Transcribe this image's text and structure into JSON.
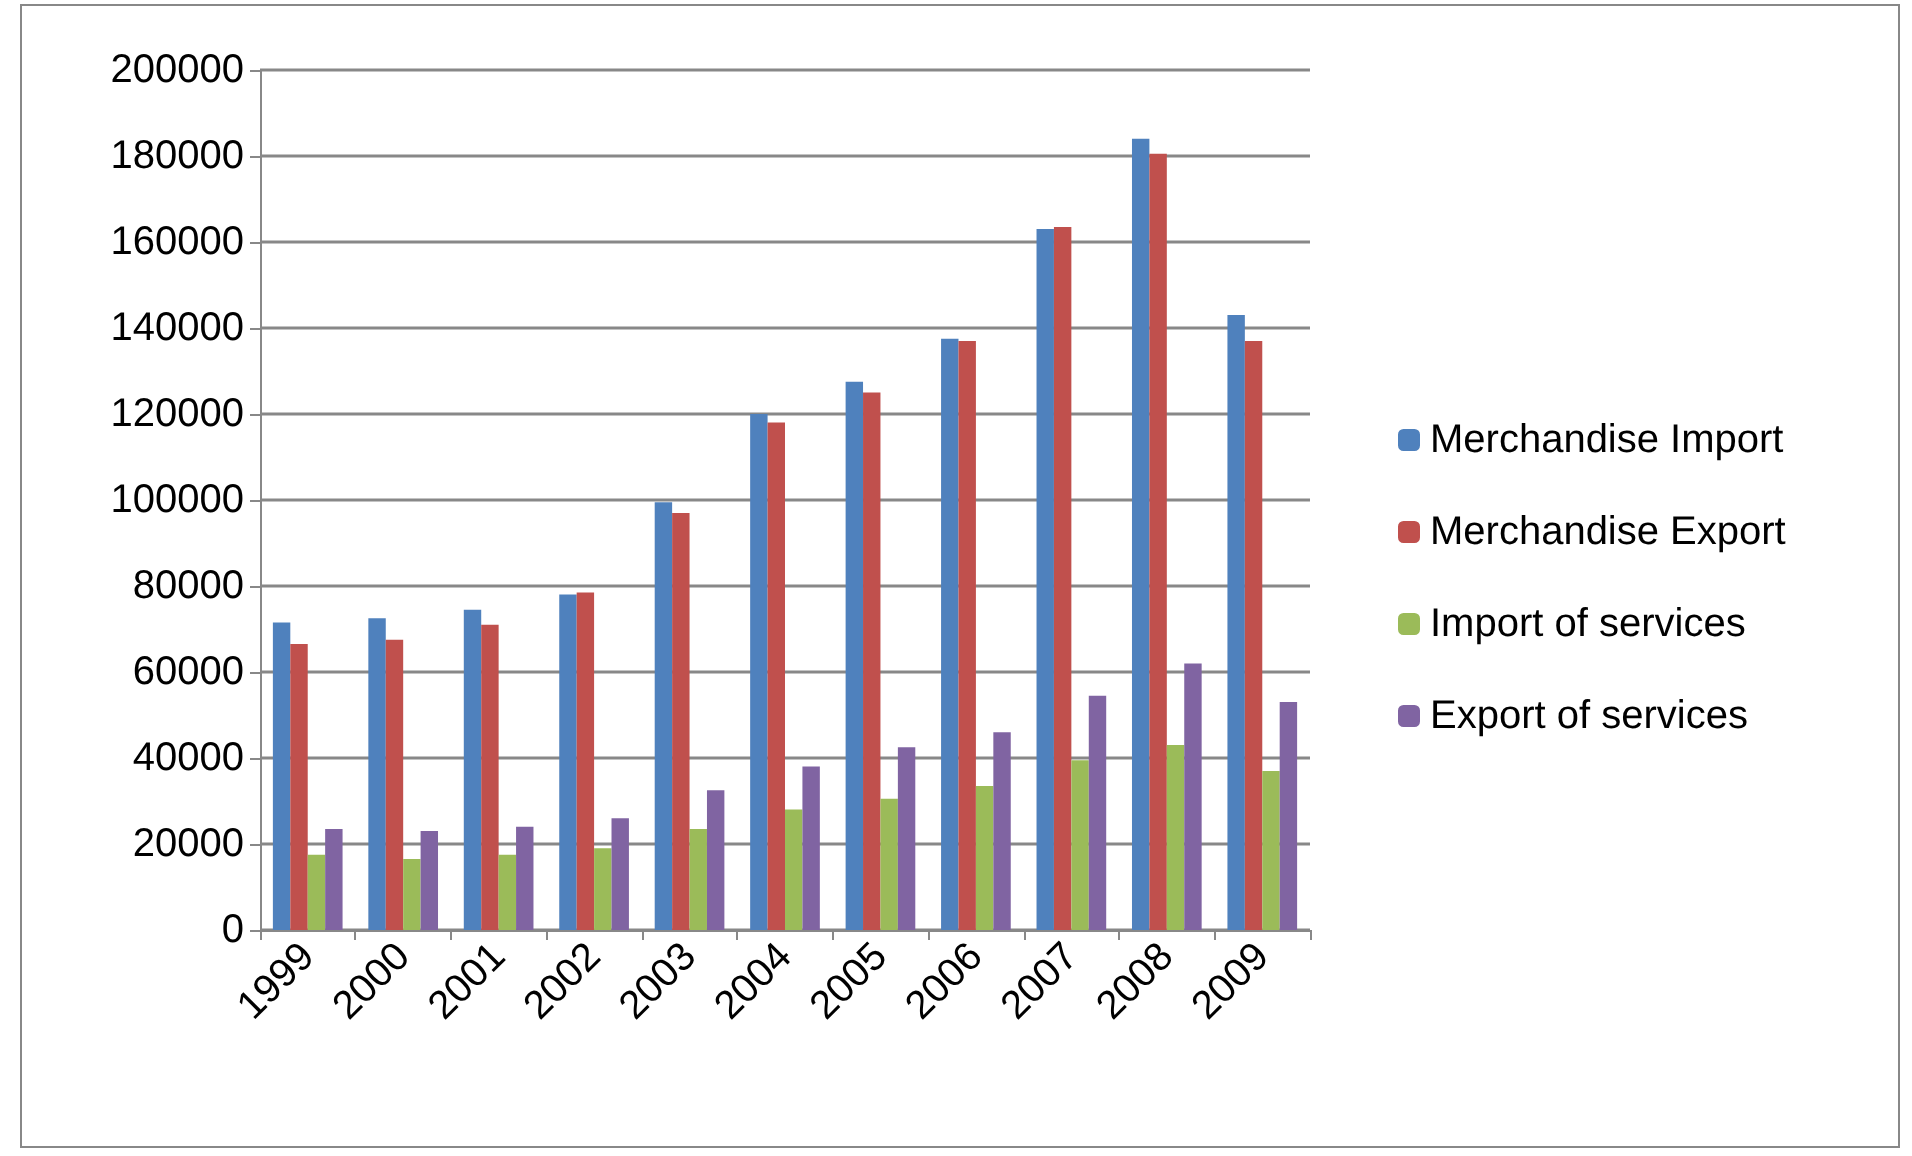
{
  "chart_data": {
    "type": "bar",
    "categories": [
      "1999",
      "2000",
      "2001",
      "2002",
      "2003",
      "2004",
      "2005",
      "2006",
      "2007",
      "2008",
      "2009"
    ],
    "series": [
      {
        "name": "Merchandise Import",
        "color": "#4f81bd",
        "values": [
          71500,
          72500,
          74500,
          78000,
          99500,
          120000,
          127500,
          137500,
          163000,
          184000,
          143000
        ]
      },
      {
        "name": "Merchandise Export",
        "color": "#c0504d",
        "values": [
          66500,
          67500,
          71000,
          78500,
          97000,
          118000,
          125000,
          137000,
          163500,
          180500,
          137000
        ]
      },
      {
        "name": "Import of services",
        "color": "#9bbb59",
        "values": [
          17500,
          16500,
          17500,
          19000,
          23500,
          28000,
          30500,
          33500,
          39500,
          43000,
          37000
        ]
      },
      {
        "name": "Export of services",
        "color": "#8064a2",
        "values": [
          23500,
          23000,
          24000,
          26000,
          32500,
          38000,
          42500,
          46000,
          54500,
          62000,
          53000
        ]
      }
    ],
    "ylim": [
      0,
      200000
    ],
    "yticks": [
      0,
      20000,
      40000,
      60000,
      80000,
      100000,
      120000,
      140000,
      160000,
      180000,
      200000
    ],
    "grid": "y",
    "legend": "right"
  }
}
